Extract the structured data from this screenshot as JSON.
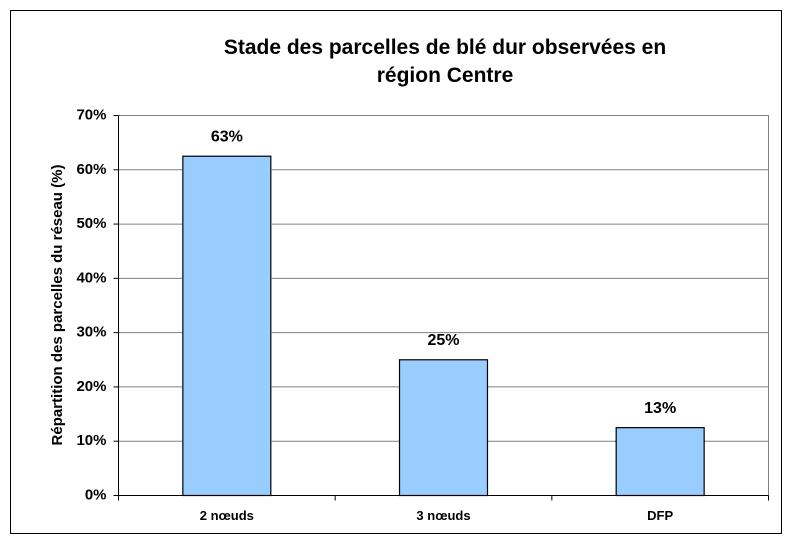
{
  "chart_data": {
    "type": "bar",
    "title": "Stade des parcelles de blé dur observées en région Centre",
    "ylabel": "Répartition des parcelles du réseau (%)",
    "categories": [
      "2 nœuds",
      "3 nœuds",
      "DFP"
    ],
    "values": [
      62.5,
      25,
      12.5
    ],
    "value_labels": [
      "63%",
      "25%",
      "13%"
    ],
    "color": "#99ccff",
    "ylim": [
      0,
      70
    ],
    "yticks": [
      {
        "value": 0,
        "label": "0%"
      },
      {
        "value": 10,
        "label": "10%"
      },
      {
        "value": 20,
        "label": "20%"
      },
      {
        "value": 30,
        "label": "30%"
      },
      {
        "value": 40,
        "label": "40%"
      },
      {
        "value": 50,
        "label": "50%"
      },
      {
        "value": 60,
        "label": "60%"
      },
      {
        "value": 70,
        "label": "70%"
      }
    ],
    "grid": true
  }
}
